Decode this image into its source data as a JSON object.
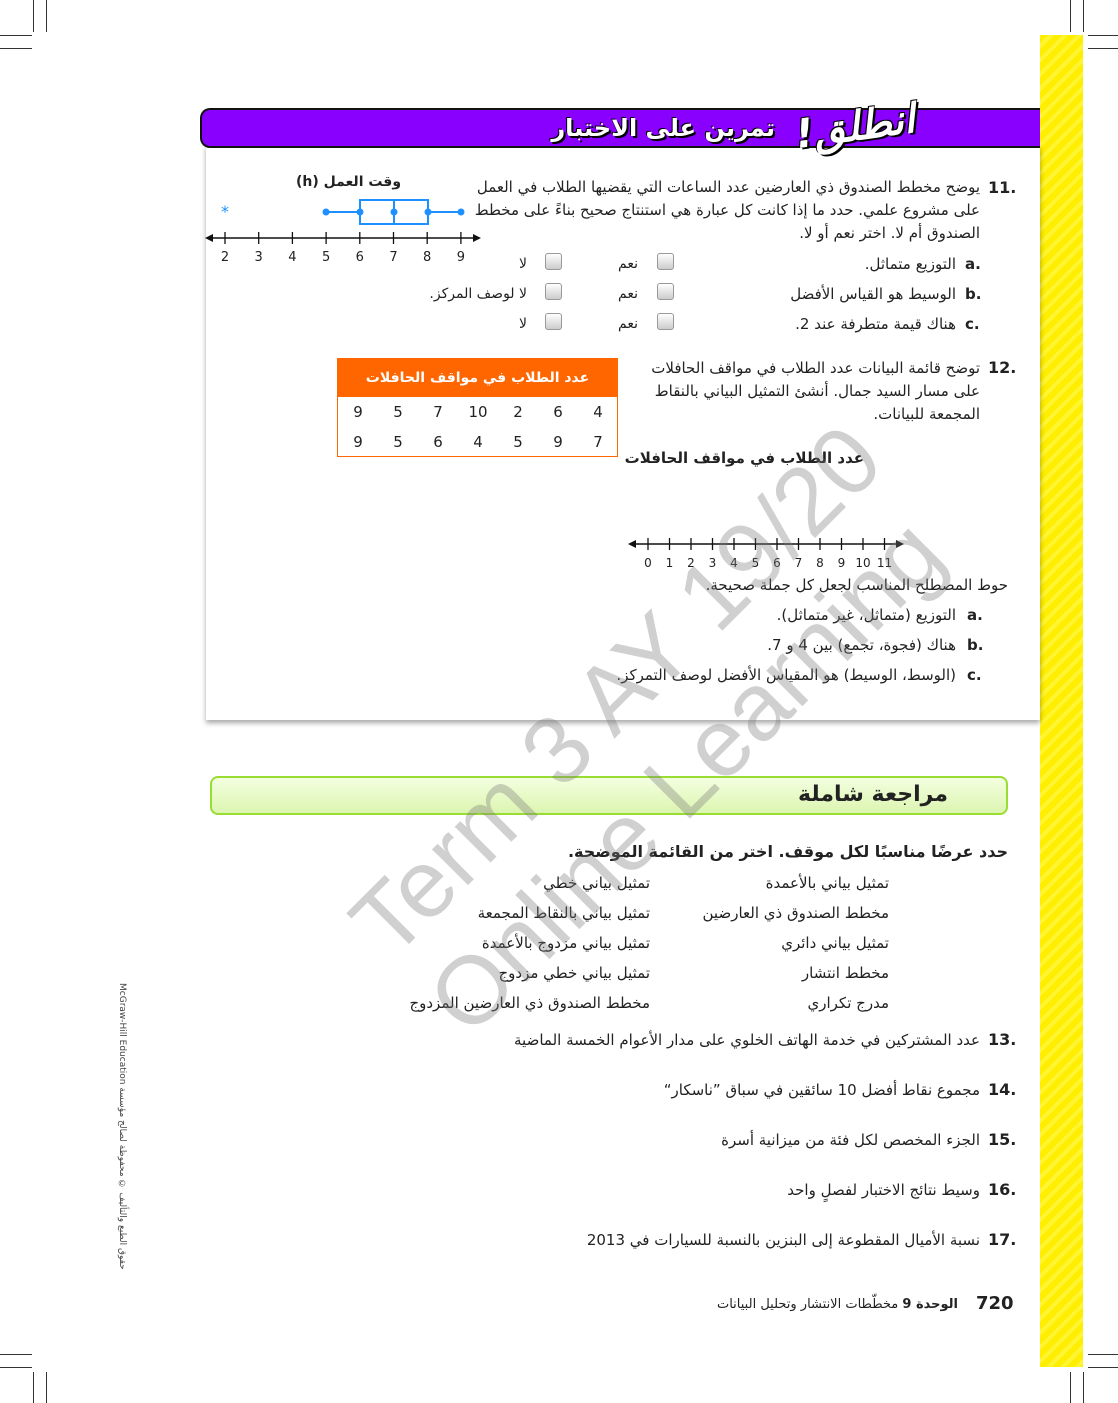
{
  "banner": {
    "title": "تمرين على الاختبار",
    "go": "انطلق!"
  },
  "q11": {
    "num": "11.",
    "text": "يوضح مخطط الصندوق ذي العارضين عدد الساعات التي يقضيها الطلاب في العمل على مشروع علمي. حدد ما إذا كانت كل عبارة هي استنتاج صحيح بناءً على مخطط الصندوق أم لا. اختر نعم أو لا.",
    "items": [
      {
        "letter": "a.",
        "text": "التوزيع متماثل.",
        "yes": "نعم",
        "no": "لا"
      },
      {
        "letter": "b.",
        "text": "الوسيط هو القياس الأفضل",
        "yes": "نعم",
        "no": "لا لوصف المركز."
      },
      {
        "letter": "c.",
        "text": "هناك قيمة متطرفة عند 2.",
        "yes": "نعم",
        "no": "لا"
      }
    ],
    "chart": {
      "title": "وقت العمل (h)",
      "ticks": [
        "2",
        "3",
        "4",
        "5",
        "6",
        "7",
        "8",
        "9"
      ]
    }
  },
  "q12": {
    "num": "12.",
    "text": "توضح قائمة البيانات عدد الطلاب في مواقف الحافلات على مسار السيد جمال. أنشئ التمثيل البياني بالنقاط المجمعة للبيانات.",
    "table": {
      "title": "عدد الطلاب في مواقف الحافلات",
      "rows": [
        [
          "9",
          "5",
          "7",
          "10",
          "2",
          "6",
          "4"
        ],
        [
          "9",
          "5",
          "6",
          "4",
          "5",
          "9",
          "7"
        ]
      ]
    },
    "plot_title": "عدد الطلاب في مواقف الحافلات",
    "ticks": [
      "0",
      "1",
      "2",
      "3",
      "4",
      "5",
      "6",
      "7",
      "8",
      "9",
      "10",
      "11"
    ],
    "instruction": "حوط المصطلح المناسب لجعل كل جملة صحيحة.",
    "items": [
      {
        "letter": "a.",
        "text": "التوزيع (متماثل، غير متماثل)."
      },
      {
        "letter": "b.",
        "text": "هناك (فجوة، تجمع) بين 4 و 7."
      },
      {
        "letter": "c.",
        "text": "(الوسط، الوسيط) هو المقياس الأفضل لوصف التمركز."
      }
    ]
  },
  "review": {
    "title": "مراجعة شاملة",
    "instruction": "حدد عرضًا مناسبًا لكل موقف. اختر من القائمة الموضحة.",
    "col1": [
      "تمثيل بياني بالأعمدة",
      "مخطط الصندوق ذي العارضين",
      "تمثيل بياني دائري",
      "مخطط انتشار",
      "مدرج تكراري"
    ],
    "col2": [
      "تمثيل بياني خطي",
      "تمثيل بياني بالنقاط المجمعة",
      "تمثيل بياني مزدوج بالأعمدة",
      "تمثيل بياني خطي مزدوج",
      "مخطط الصندوق ذي العارضين المزدوج"
    ],
    "questions": [
      {
        "num": "13.",
        "text": "عدد المشتركين في خدمة الهاتف الخلوي على مدار الأعوام الخمسة الماضية"
      },
      {
        "num": "14.",
        "text": "مجموع نقاط أفضل 10 سائقين في سباق ”ناسكار“"
      },
      {
        "num": "15.",
        "text": "الجزء المخصص لكل فئة من ميزانية أسرة"
      },
      {
        "num": "16.",
        "text": "وسيط نتائج الاختبار لفصلٍ واحد"
      },
      {
        "num": "17.",
        "text": "نسبة الأميال المقطوعة إلى البنزين بالنسبة للسيارات في 2013"
      }
    ]
  },
  "footer": {
    "page": "720",
    "unit": "الوحدة 9",
    "chapter": "مخطّطات الانتشار وتحليل البيانات"
  },
  "copyright": "حقوق الطبع والتأليف © محفوظة لصالح مؤسسة McGraw-Hill Education",
  "watermark": "Term 3 AY 19/20\nOnline Learning",
  "colors": {
    "banner": "#8a00ff",
    "table_header": "#ff6600",
    "boxplot": "#1e90ff",
    "review_border": "#99dd33",
    "stripe": "#ffee00"
  }
}
